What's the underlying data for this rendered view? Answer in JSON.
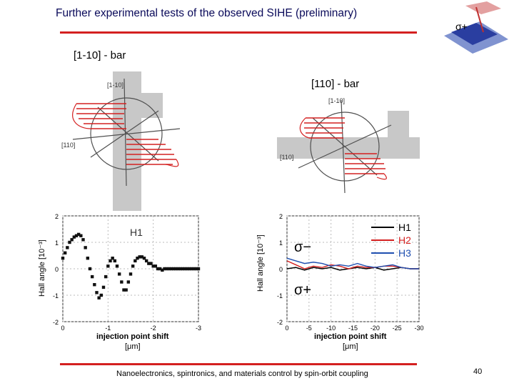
{
  "slide": {
    "title": "Further experimental tests of the observed SIHE  (preliminary)",
    "bar_label_left": "[1-10] - bar",
    "bar_label_right": "[110] - bar",
    "footer": "Nanoelectronics, spintronics, and materials control by spin-orbit coupling",
    "page_number": "40",
    "corner_symbol": "σ+",
    "accent_color": "#d42020",
    "title_color": "#0a0a5a"
  },
  "diagrams": [
    {
      "axis_label_top": "[1-10]",
      "axis_label_left": "[110]"
    },
    {
      "axis_label_top": "[1-10]",
      "axis_label_left": "[110]"
    }
  ],
  "chart_data": [
    {
      "type": "scatter",
      "ylabel": "Hall angle [10⁻³]",
      "xlabel": "injection point shift",
      "xunit": "[μm]",
      "xlim": [
        0,
        -3
      ],
      "ylim": [
        -2,
        2
      ],
      "x_ticks": [
        "0",
        "-1",
        "-2",
        "-3"
      ],
      "y_ticks": [
        "2",
        "1",
        "0",
        "-1",
        "-2"
      ],
      "annotation": "H1",
      "series": [
        {
          "name": "H1",
          "x": [
            0.0,
            -0.05,
            -0.1,
            -0.15,
            -0.2,
            -0.25,
            -0.3,
            -0.35,
            -0.4,
            -0.45,
            -0.5,
            -0.55,
            -0.6,
            -0.65,
            -0.7,
            -0.75,
            -0.8,
            -0.85,
            -0.9,
            -0.95,
            -1.0,
            -1.05,
            -1.1,
            -1.15,
            -1.2,
            -1.25,
            -1.3,
            -1.35,
            -1.4,
            -1.45,
            -1.5,
            -1.55,
            -1.6,
            -1.65,
            -1.7,
            -1.75,
            -1.8,
            -1.85,
            -1.9,
            -1.95,
            -2.0,
            -2.05,
            -2.1,
            -2.15,
            -2.2,
            -2.25,
            -2.3,
            -2.35,
            -2.4,
            -2.45,
            -2.5,
            -2.55,
            -2.6,
            -2.65,
            -2.7,
            -2.75,
            -2.8,
            -2.85,
            -2.9,
            -2.95,
            -3.0
          ],
          "y": [
            0.4,
            0.6,
            0.8,
            1.0,
            1.1,
            1.2,
            1.25,
            1.3,
            1.25,
            1.1,
            0.8,
            0.4,
            0.0,
            -0.3,
            -0.6,
            -0.9,
            -1.1,
            -1.0,
            -0.7,
            -0.3,
            0.1,
            0.3,
            0.4,
            0.3,
            0.1,
            -0.2,
            -0.5,
            -0.8,
            -0.8,
            -0.5,
            -0.2,
            0.1,
            0.3,
            0.4,
            0.45,
            0.45,
            0.4,
            0.3,
            0.2,
            0.2,
            0.1,
            0.1,
            0.0,
            0.0,
            -0.05,
            0.0,
            0.0,
            0.0,
            0.0,
            0.0,
            0.0,
            0.0,
            0.0,
            0.0,
            0.0,
            0.0,
            0.0,
            0.0,
            0.0,
            0.0,
            0.0
          ]
        }
      ]
    },
    {
      "type": "line",
      "ylabel": "Hall angle [10⁻³]",
      "xlabel": "injection point shift",
      "xunit": "[μm]",
      "xlim": [
        0,
        -30
      ],
      "ylim": [
        -2,
        2
      ],
      "x_ticks": [
        "0",
        "-5",
        "-10",
        "-15",
        "-20",
        "-25",
        "-30"
      ],
      "y_ticks": [
        "2",
        "1",
        "0",
        "-1",
        "-2"
      ],
      "annotations": [
        "σ−",
        "σ+"
      ],
      "legend_position": "top-right",
      "series": [
        {
          "name": "H1",
          "color": "#000000",
          "x": [
            0,
            -2,
            -4,
            -6,
            -8,
            -10,
            -12,
            -14,
            -16,
            -18,
            -20,
            -22,
            -24,
            -26,
            -28,
            -30
          ],
          "y": [
            0.0,
            0.05,
            -0.05,
            0.05,
            0.0,
            0.05,
            -0.05,
            0.0,
            0.05,
            0.0,
            0.05,
            -0.05,
            0.0,
            0.05,
            0.0,
            0.0
          ]
        },
        {
          "name": "H2",
          "color": "#d42020",
          "x": [
            0,
            -2,
            -4,
            -6,
            -8,
            -10,
            -12,
            -14,
            -16,
            -18,
            -20,
            -22,
            -24,
            -26,
            -28,
            -30
          ],
          "y": [
            0.3,
            0.15,
            0.0,
            0.1,
            0.05,
            0.15,
            0.1,
            0.0,
            0.1,
            0.05,
            0.05,
            0.1,
            0.1,
            0.05,
            0.0,
            0.0
          ]
        },
        {
          "name": "H3",
          "color": "#1f4fb0",
          "x": [
            0,
            -2,
            -4,
            -6,
            -8,
            -10,
            -12,
            -14,
            -16,
            -18,
            -20,
            -22,
            -24,
            -26,
            -28,
            -30
          ],
          "y": [
            0.4,
            0.3,
            0.2,
            0.25,
            0.2,
            0.1,
            0.15,
            0.1,
            0.2,
            0.1,
            0.05,
            0.1,
            0.15,
            0.05,
            0.0,
            0.0
          ]
        }
      ]
    }
  ]
}
